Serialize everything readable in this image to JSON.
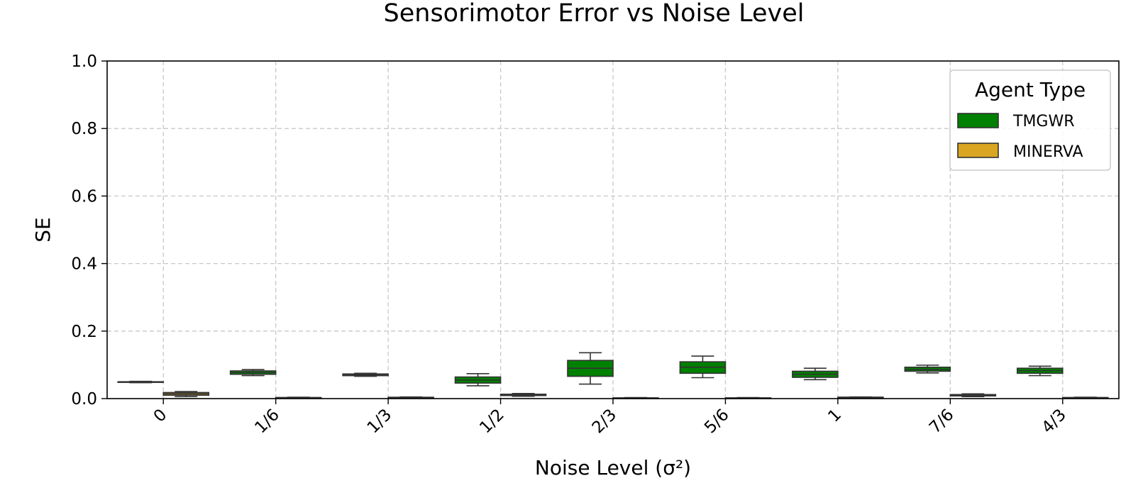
{
  "chart_data": {
    "type": "box",
    "title": "Sensorimotor Error vs Noise Level",
    "xlabel": "Noise Level (σ²)",
    "ylabel": "SE",
    "ylim": [
      0.0,
      1.0
    ],
    "yticks": [
      "0.0",
      "0.2",
      "0.4",
      "0.6",
      "0.8",
      "1.0"
    ],
    "categories": [
      "0",
      "1/6",
      "1/3",
      "1/2",
      "2/3",
      "5/6",
      "1",
      "7/6",
      "4/3"
    ],
    "grid": true,
    "legend": {
      "title": "Agent Type",
      "placement": "top-right"
    },
    "series": [
      {
        "name": "TMGWR",
        "color": "#008000",
        "boxes": [
          {
            "whislo": 0.047,
            "q1": 0.048,
            "med": 0.049,
            "q3": 0.05,
            "whishi": 0.051
          },
          {
            "whislo": 0.068,
            "q1": 0.072,
            "med": 0.077,
            "q3": 0.082,
            "whishi": 0.086
          },
          {
            "whislo": 0.066,
            "q1": 0.068,
            "med": 0.07,
            "q3": 0.073,
            "whishi": 0.075
          },
          {
            "whislo": 0.038,
            "q1": 0.046,
            "med": 0.055,
            "q3": 0.064,
            "whishi": 0.074
          },
          {
            "whislo": 0.043,
            "q1": 0.066,
            "med": 0.09,
            "q3": 0.113,
            "whishi": 0.136
          },
          {
            "whislo": 0.062,
            "q1": 0.075,
            "med": 0.093,
            "q3": 0.109,
            "whishi": 0.126
          },
          {
            "whislo": 0.056,
            "q1": 0.063,
            "med": 0.072,
            "q3": 0.081,
            "whishi": 0.09
          },
          {
            "whislo": 0.076,
            "q1": 0.081,
            "med": 0.086,
            "q3": 0.093,
            "whishi": 0.099
          },
          {
            "whislo": 0.068,
            "q1": 0.075,
            "med": 0.083,
            "q3": 0.09,
            "whishi": 0.096
          }
        ]
      },
      {
        "name": "MINERVA",
        "color": "#DAA520",
        "boxes": [
          {
            "whislo": 0.006,
            "q1": 0.01,
            "med": 0.014,
            "q3": 0.018,
            "whishi": 0.021
          },
          {
            "whislo": 0.001,
            "q1": 0.002,
            "med": 0.003,
            "q3": 0.003,
            "whishi": 0.004
          },
          {
            "whislo": 0.002,
            "q1": 0.003,
            "med": 0.003,
            "q3": 0.004,
            "whishi": 0.005
          },
          {
            "whislo": 0.007,
            "q1": 0.009,
            "med": 0.011,
            "q3": 0.013,
            "whishi": 0.015
          },
          {
            "whislo": 0.001,
            "q1": 0.001,
            "med": 0.002,
            "q3": 0.002,
            "whishi": 0.003
          },
          {
            "whislo": 0.001,
            "q1": 0.001,
            "med": 0.002,
            "q3": 0.002,
            "whishi": 0.003
          },
          {
            "whislo": 0.002,
            "q1": 0.003,
            "med": 0.004,
            "q3": 0.004,
            "whishi": 0.005
          },
          {
            "whislo": 0.006,
            "q1": 0.008,
            "med": 0.01,
            "q3": 0.012,
            "whishi": 0.014
          },
          {
            "whislo": 0.001,
            "q1": 0.002,
            "med": 0.003,
            "q3": 0.003,
            "whishi": 0.004
          }
        ]
      }
    ]
  }
}
